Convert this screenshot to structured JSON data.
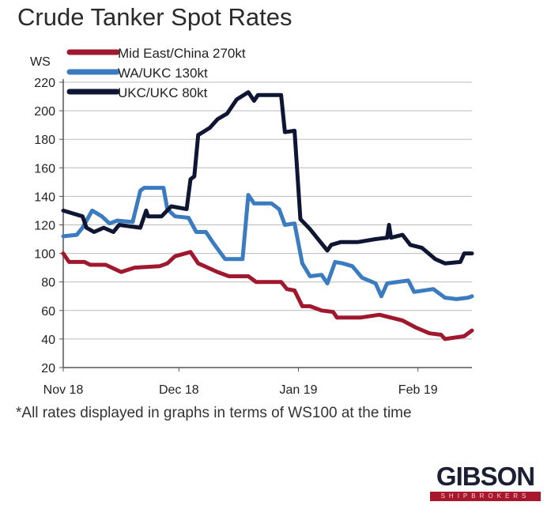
{
  "chart_data": {
    "type": "line",
    "title": "Crude Tanker Spot Rates",
    "ylabel": "WS",
    "xlabel": "",
    "ylim": [
      20,
      220
    ],
    "yticks": [
      20,
      40,
      60,
      80,
      100,
      120,
      140,
      160,
      180,
      200,
      220
    ],
    "xlim_days": [
      0,
      106
    ],
    "xticks": [
      {
        "label": "Nov 18",
        "day": 0
      },
      {
        "label": "Dec 18",
        "day": 30
      },
      {
        "label": "Jan 19",
        "day": 61
      },
      {
        "label": "Feb 19",
        "day": 92
      }
    ],
    "grid": true,
    "legend_placement": "top-left",
    "series": [
      {
        "name": "Mid East/China 270kt",
        "color": "#a0182e",
        "x": [
          0,
          1.5,
          5.5,
          7,
          11,
          15,
          18.5,
          25,
          27,
          29,
          33,
          35,
          40,
          43,
          48,
          50,
          56.5,
          58,
          60,
          62,
          64,
          67,
          70,
          71,
          77,
          82,
          88,
          91.5,
          95,
          98,
          99,
          104,
          106
        ],
        "y": [
          100,
          94,
          94,
          92,
          92,
          87,
          90,
          91,
          93,
          98,
          101,
          93,
          87,
          84,
          84,
          80,
          80,
          75,
          74,
          63,
          63,
          60,
          59,
          55,
          55,
          57,
          53,
          48,
          44,
          43,
          40,
          42,
          46
        ]
      },
      {
        "name": "WA/UKC 130kt",
        "color": "#3b7bbf",
        "x": [
          0,
          3.5,
          5,
          7.5,
          10,
          12,
          14,
          18,
          20,
          21,
          26,
          27,
          29,
          32.5,
          34.5,
          37,
          39,
          42,
          46.5,
          48,
          49.5,
          54,
          56,
          57.5,
          60,
          62,
          64,
          67,
          68.5,
          70.5,
          72.5,
          75,
          77.5,
          81,
          82.5,
          84,
          89.5,
          91,
          96,
          99,
          102,
          105,
          106
        ],
        "y": [
          112,
          113,
          118,
          130,
          126,
          121,
          123,
          122,
          144,
          146,
          146,
          131,
          126,
          125,
          115,
          115,
          107,
          96,
          96,
          141,
          135,
          135,
          131,
          120,
          121,
          93,
          84,
          85,
          79,
          94,
          93,
          91,
          83,
          79,
          70,
          79,
          81,
          73,
          75,
          69,
          68,
          69,
          70
        ]
      },
      {
        "name": "UKC/UKC 80kt",
        "color": "#0f1633",
        "x": [
          0,
          5,
          6,
          8,
          10.5,
          13,
          14.5,
          20,
          21.5,
          22,
          25.5,
          28,
          32,
          33,
          34,
          35,
          38,
          40,
          42.5,
          45,
          48,
          49.5,
          50.5,
          56.5,
          57.5,
          60,
          61.5,
          64,
          67,
          68.5,
          69.5,
          72,
          76.5,
          81,
          84,
          84.5,
          85,
          88,
          90,
          93,
          96.5,
          99,
          103,
          104,
          106
        ],
        "y": [
          130,
          126,
          118,
          115,
          118,
          115,
          120,
          118,
          130,
          126,
          126,
          133,
          131,
          152,
          154,
          183,
          188,
          194,
          198,
          208,
          213,
          207,
          211,
          211,
          185,
          186,
          124,
          117,
          107,
          102,
          106,
          108,
          108,
          110,
          111,
          120,
          111,
          113,
          106,
          104,
          96,
          93,
          94,
          100,
          100
        ]
      }
    ]
  },
  "note": "*All rates displayed in graphs in terms of WS100 at the time",
  "logo": {
    "main": "GIBSON",
    "sub": "SHIPBROKERS"
  }
}
